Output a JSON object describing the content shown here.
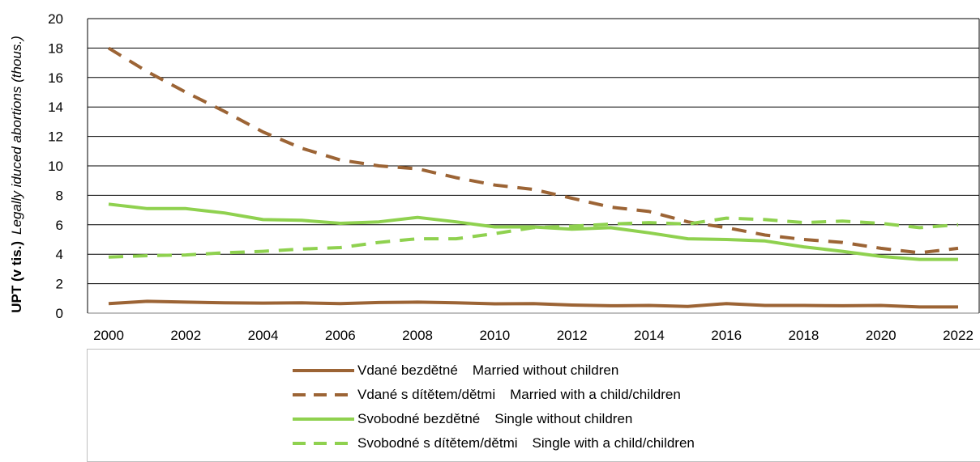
{
  "chart_data": {
    "type": "line",
    "title": "",
    "ylabel_cz": "UPT (v tis.)",
    "ylabel_en": "Legally iduced abortions (thous.)",
    "xlabel": "",
    "ylim": [
      0,
      20
    ],
    "y_ticks": [
      0,
      2,
      4,
      6,
      8,
      10,
      12,
      14,
      16,
      18,
      20
    ],
    "x": [
      2000,
      2001,
      2002,
      2003,
      2004,
      2005,
      2006,
      2007,
      2008,
      2009,
      2010,
      2011,
      2012,
      2013,
      2014,
      2015,
      2016,
      2017,
      2018,
      2019,
      2020,
      2021,
      2022
    ],
    "x_ticks": [
      2000,
      2002,
      2004,
      2006,
      2008,
      2010,
      2012,
      2014,
      2016,
      2018,
      2020,
      2022
    ],
    "grid": "horizontal",
    "legend_position": "bottom",
    "series": [
      {
        "name_cz": "Vdané bezdětné",
        "name_en": "Married without children",
        "color": "#9c6435",
        "dash": "solid",
        "values": [
          0.65,
          0.8,
          0.75,
          0.7,
          0.68,
          0.7,
          0.65,
          0.72,
          0.75,
          0.7,
          0.63,
          0.65,
          0.55,
          0.5,
          0.52,
          0.45,
          0.65,
          0.52,
          0.52,
          0.5,
          0.52,
          0.42,
          0.42
        ]
      },
      {
        "name_cz": "Vdané s dítětem/dětmi",
        "name_en": "Married with a child/children",
        "color": "#9c6435",
        "dash": "dashed",
        "values": [
          18.0,
          16.4,
          15.0,
          13.7,
          12.3,
          11.2,
          10.4,
          10.0,
          9.8,
          9.2,
          8.7,
          8.4,
          7.8,
          7.2,
          6.9,
          6.2,
          5.8,
          5.3,
          5.0,
          4.8,
          4.4,
          4.1,
          4.4
        ]
      },
      {
        "name_cz": "Svobodné bezdětné",
        "name_en": "Single without children",
        "color": "#8fd14f",
        "dash": "solid",
        "values": [
          7.4,
          7.1,
          7.1,
          6.8,
          6.35,
          6.3,
          6.1,
          6.2,
          6.5,
          6.2,
          5.85,
          5.85,
          5.7,
          5.8,
          5.45,
          5.05,
          5.0,
          4.9,
          4.5,
          4.2,
          3.85,
          3.65,
          3.65
        ]
      },
      {
        "name_cz": "Svobodné s dítětem/dětmi",
        "name_en": "Single with a child/children",
        "color": "#8fd14f",
        "dash": "dashed",
        "values": [
          3.8,
          3.9,
          3.95,
          4.1,
          4.2,
          4.35,
          4.45,
          4.8,
          5.05,
          5.05,
          5.4,
          5.8,
          5.9,
          6.05,
          6.15,
          6.05,
          6.45,
          6.35,
          6.15,
          6.25,
          6.1,
          5.8,
          6.0
        ]
      }
    ]
  }
}
